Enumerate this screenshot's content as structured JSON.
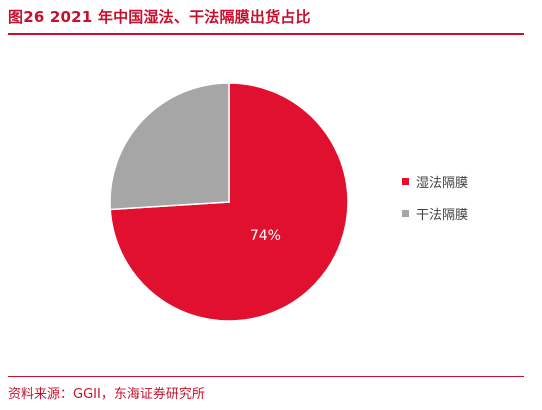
{
  "title": "图26  2021 年中国湿法、干法隔膜出货占比",
  "source": "资料来源：GGII，东海证券研究所",
  "colors": {
    "accent": "#c8102e",
    "wet": "#e0102e",
    "dry": "#a6a6a6"
  },
  "chart_data": {
    "type": "pie",
    "title": "",
    "categories": [
      "湿法隔膜",
      "干法隔膜"
    ],
    "values": [
      74,
      26
    ],
    "data_labels": [
      "74%",
      ""
    ],
    "legend": [
      "湿法隔膜",
      "干法隔膜"
    ],
    "legend_position": "right"
  }
}
